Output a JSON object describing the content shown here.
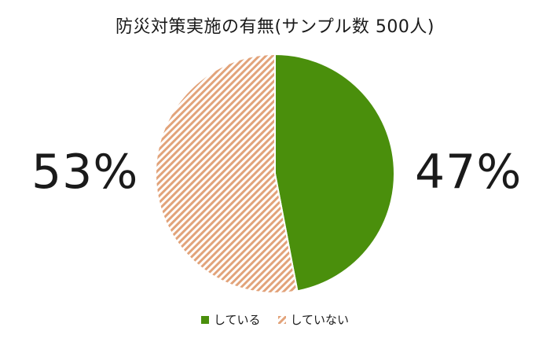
{
  "chart_data": {
    "type": "pie",
    "title": "防災対策実施の有無(サンプル数 500人)",
    "slices": [
      {
        "label": "している",
        "value": 47,
        "display": "47%",
        "color": "#4a8f0c",
        "pattern": "solid"
      },
      {
        "label": "していない",
        "value": 53,
        "display": "53%",
        "color": "#e2a37a",
        "pattern": "diagonal-hatch"
      }
    ],
    "start_angle_deg": 0,
    "direction": "clockwise",
    "legend_position": "bottom"
  }
}
